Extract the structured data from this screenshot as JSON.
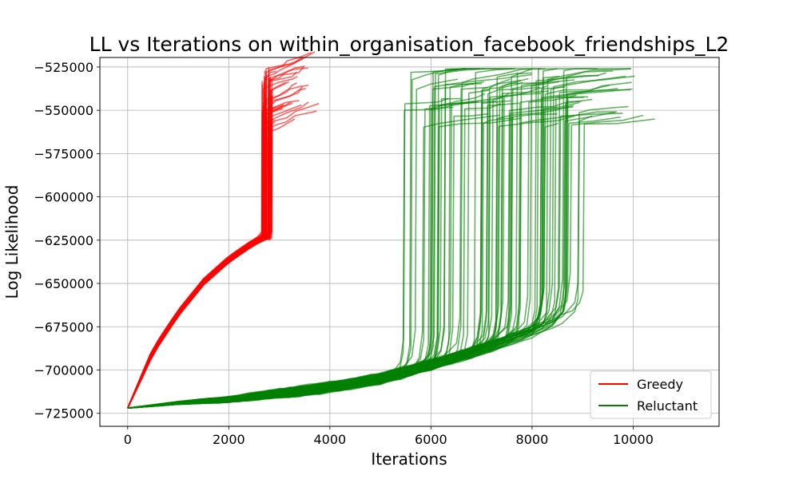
{
  "chart_data": {
    "type": "line",
    "title": "LL vs Iterations on within_organisation_facebook_friendships_L2",
    "xlabel": "Iterations",
    "ylabel": "Log Likelihood",
    "xlim": [
      -550,
      11700
    ],
    "ylim": [
      -732500,
      -519500
    ],
    "xticks": [
      0,
      2000,
      4000,
      6000,
      8000,
      10000
    ],
    "xtick_labels": [
      "0",
      "2000",
      "4000",
      "6000",
      "8000",
      "10000"
    ],
    "yticks": [
      -525000,
      -550000,
      -575000,
      -600000,
      -625000,
      -650000,
      -675000,
      -700000,
      -725000
    ],
    "ytick_labels": [
      "−525000",
      "−550000",
      "−575000",
      "−600000",
      "−625000",
      "−650000",
      "−675000",
      "−700000",
      "−725000"
    ],
    "grid": true,
    "legend": {
      "position": "lower-right",
      "entries": [
        "Greedy",
        "Reluctant"
      ]
    },
    "series": [
      {
        "name": "Greedy",
        "color": "#ff0000",
        "run_count": 60,
        "start": [
          0,
          -722000
        ],
        "plateau_x_range": [
          2650,
          2850
        ],
        "plateau_y": -622000,
        "curve_points": [
          [
            0,
            -722000
          ],
          [
            500,
            -689000
          ],
          [
            1000,
            -667000
          ],
          [
            1500,
            -649000
          ],
          [
            2000,
            -636000
          ],
          [
            2500,
            -626000
          ],
          [
            2750,
            -622500
          ]
        ],
        "final_y_range": [
          -566000,
          -525000
        ],
        "final_x_max": 4050
      },
      {
        "name": "Reluctant",
        "color": "#008000",
        "run_count": 80,
        "start": [
          0,
          -722000
        ],
        "curve_points": [
          [
            0,
            -722000
          ],
          [
            1000,
            -719000
          ],
          [
            2000,
            -717000
          ],
          [
            3000,
            -713500
          ],
          [
            4000,
            -710000
          ],
          [
            5000,
            -705000
          ],
          [
            6000,
            -697000
          ],
          [
            7000,
            -688000
          ],
          [
            8000,
            -678000
          ],
          [
            9000,
            -664000
          ]
        ],
        "jump_x_range": [
          5450,
          9050
        ],
        "final_y_range": [
          -560000,
          -526000
        ],
        "final_x_max": 11200
      }
    ]
  }
}
